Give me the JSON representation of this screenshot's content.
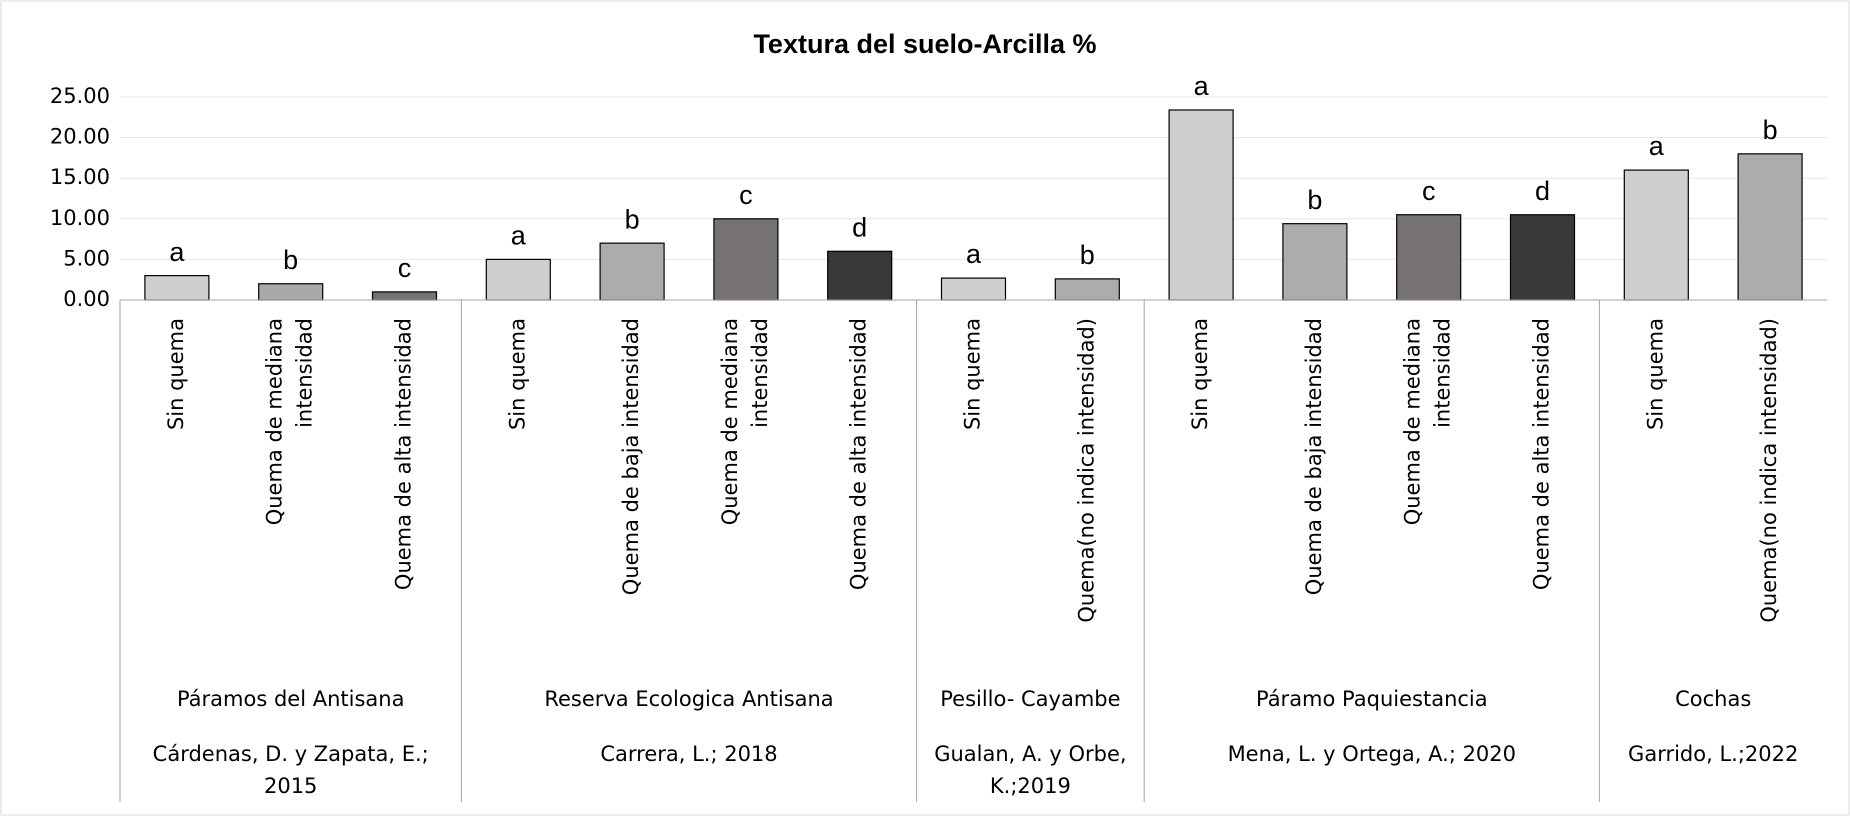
{
  "chart_data": {
    "type": "bar",
    "title": "Textura del suelo-Arcilla %",
    "ylim": [
      0,
      25
    ],
    "yticks": [
      {
        "value": 0,
        "label": "0.00"
      },
      {
        "value": 5,
        "label": "5.00"
      },
      {
        "value": 10,
        "label": "10.00"
      },
      {
        "value": 15,
        "label": "15.00"
      },
      {
        "value": 20,
        "label": "20.00"
      },
      {
        "value": 25,
        "label": "25.00"
      }
    ],
    "grid": true,
    "groups": [
      {
        "name": "Páramos del Antisana",
        "source": [
          "Cárdenas, D. y Zapata, E.;",
          "2015"
        ],
        "categories": [
          [
            "Sin quema"
          ],
          [
            "Quema de mediana",
            "intensidad"
          ],
          [
            "Quema de alta intensidad"
          ]
        ],
        "values": [
          3.0,
          2.0,
          1.0
        ],
        "letters": [
          "a",
          "b",
          "c"
        ],
        "colors": [
          "#d0cfd0",
          "#aaa8a8",
          "#767272"
        ]
      },
      {
        "name": "Reserva Ecologica Antisana",
        "source": [
          "Carrera, L.; 2018"
        ],
        "categories": [
          [
            "Sin quema"
          ],
          [
            "Quema de baja intensidad"
          ],
          [
            "Quema de mediana",
            "intensidad"
          ],
          [
            "Quema de alta intensidad"
          ]
        ],
        "values": [
          5.0,
          7.0,
          10.0,
          6.0
        ],
        "letters": [
          "a",
          "b",
          "c",
          "d"
        ],
        "colors": [
          "#d0cfd0",
          "#aeabab",
          "#767272",
          "#3a3838"
        ]
      },
      {
        "name": "Pesillo- Cayambe",
        "source": [
          "Gualan, A. y Orbe,",
          "K.;2019"
        ],
        "categories": [
          [
            "Sin quema"
          ],
          [
            "Quema(no indica intensidad)"
          ]
        ],
        "values": [
          2.7,
          2.6
        ],
        "letters": [
          "a",
          "b"
        ],
        "colors": [
          "#d0cfd0",
          "#aeabab"
        ]
      },
      {
        "name": "Páramo Paquiestancia",
        "source": [
          "Mena, L. y Ortega, A.; 2020"
        ],
        "categories": [
          [
            "Sin quema"
          ],
          [
            "Quema de baja intensidad"
          ],
          [
            "Quema de mediana",
            "intensidad"
          ],
          [
            "Quema de alta intensidad"
          ]
        ],
        "values": [
          23.4,
          9.4,
          10.5,
          10.5
        ],
        "letters": [
          "a",
          "b",
          "c",
          "d"
        ],
        "colors": [
          "#d0cfd0",
          "#aeabab",
          "#767272",
          "#3a3838"
        ]
      },
      {
        "name": "Cochas",
        "source": [
          "Garrido, L.;2022"
        ],
        "categories": [
          [
            "Sin quema"
          ],
          [
            "Quema(no indica intensidad)"
          ]
        ],
        "values": [
          16.0,
          18.0
        ],
        "letters": [
          "a",
          "b"
        ],
        "colors": [
          "#d0cfd0",
          "#aeabab"
        ]
      }
    ]
  }
}
